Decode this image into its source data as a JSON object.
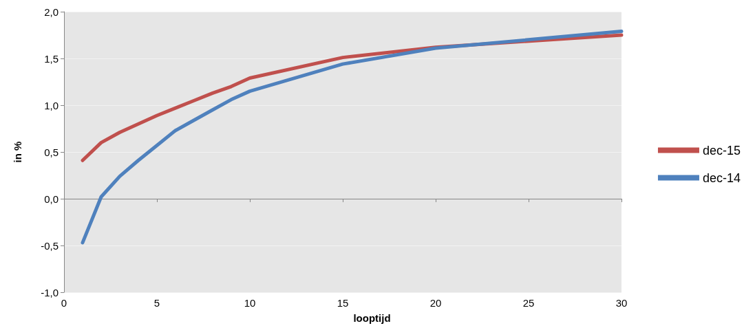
{
  "chart_data": {
    "type": "line",
    "xlabel": "looptijd",
    "ylabel": "in %",
    "series": [
      {
        "name": "dec-15",
        "color": "#c0504d",
        "x": [
          1,
          2,
          3,
          4,
          5,
          6,
          7,
          8,
          9,
          10,
          15,
          20,
          30
        ],
        "values": [
          0.41,
          0.6,
          0.71,
          0.8,
          0.89,
          0.97,
          1.05,
          1.13,
          1.2,
          1.29,
          1.51,
          1.62,
          1.75
        ]
      },
      {
        "name": "dec-14",
        "color": "#4f81bd",
        "x": [
          1,
          2,
          3,
          4,
          5,
          6,
          7,
          8,
          9,
          10,
          15,
          20,
          30
        ],
        "values": [
          -0.47,
          0.02,
          0.24,
          0.41,
          0.57,
          0.73,
          0.84,
          0.95,
          1.06,
          1.15,
          1.44,
          1.61,
          1.79
        ]
      }
    ],
    "xlim": [
      0,
      30
    ],
    "xticks": [
      0,
      5,
      10,
      15,
      20,
      25,
      30
    ],
    "ylim": [
      -1,
      2
    ],
    "yticks": [
      {
        "value": -1,
        "label": "-1,0"
      },
      {
        "value": -0.5,
        "label": "-0,5"
      },
      {
        "value": 0,
        "label": "0,0"
      },
      {
        "value": 0.5,
        "label": "0,5"
      },
      {
        "value": 1,
        "label": "1,0"
      },
      {
        "value": 1.5,
        "label": "1,5"
      },
      {
        "value": 2,
        "label": "2,0"
      }
    ],
    "grid": "y",
    "legend": "right",
    "marker": "none",
    "line_style": "solid"
  }
}
